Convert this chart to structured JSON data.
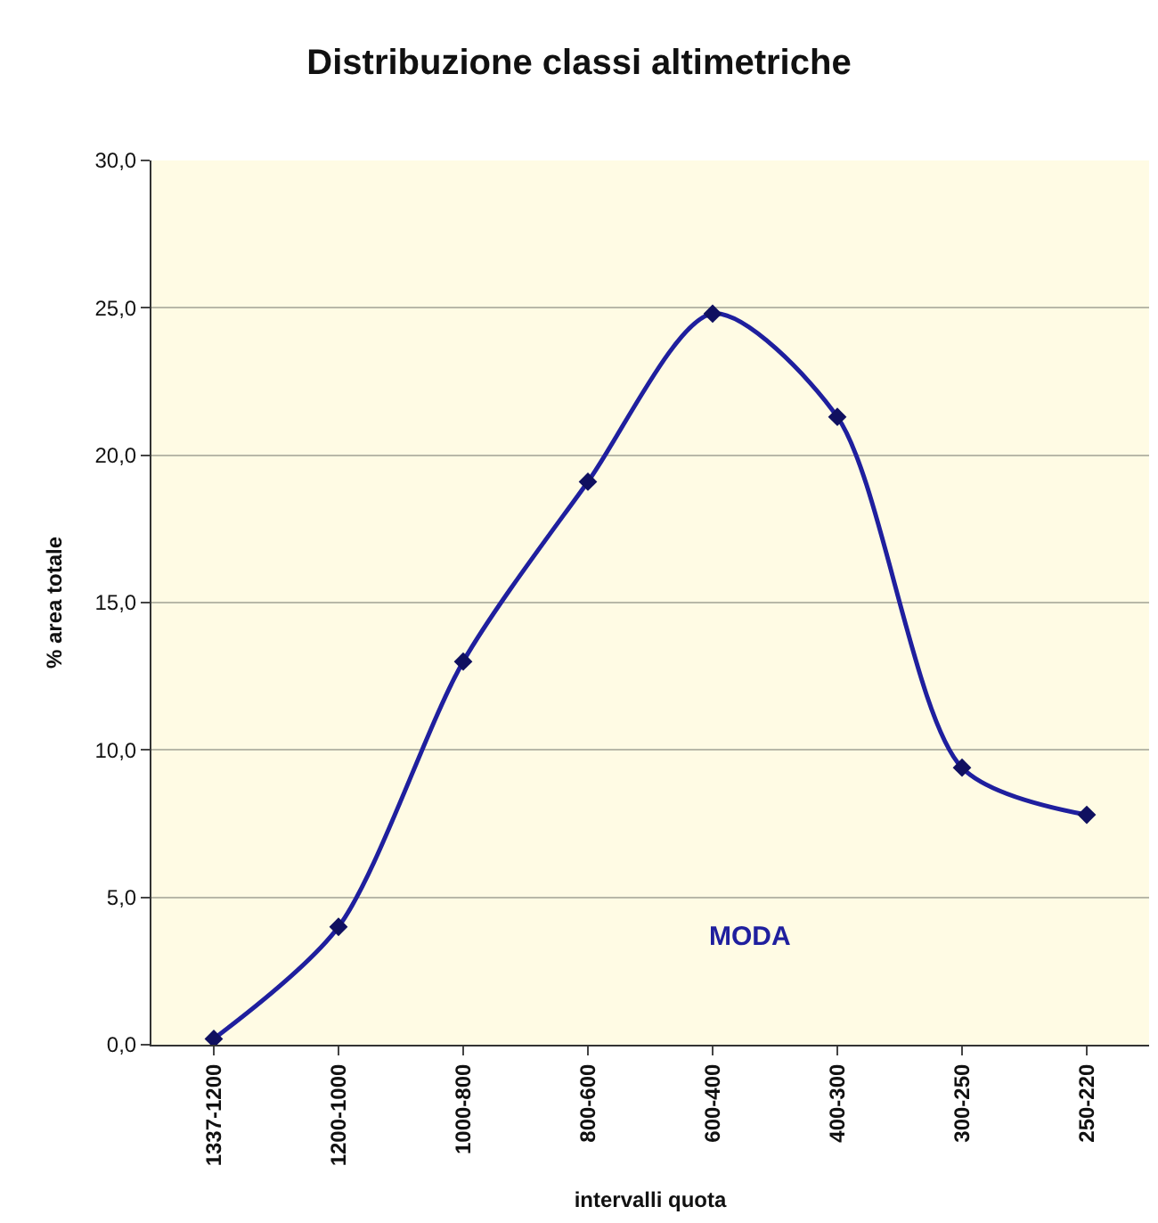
{
  "chart_data": {
    "type": "line",
    "title": "Distribuzione classi altimetriche",
    "xlabel": "intervalli quota",
    "ylabel": "% area totale",
    "categories": [
      "1337-1200",
      "1200-1000",
      "1000-800",
      "800-600",
      "600-400",
      "400-300",
      "300-250",
      "250-220"
    ],
    "series": [
      {
        "color": "#1f1f9e",
        "values": [
          0.2,
          4.0,
          13.0,
          19.1,
          24.8,
          21.3,
          9.4,
          7.8
        ]
      }
    ],
    "ylim": [
      0,
      30
    ],
    "yticks": [
      {
        "value": 0,
        "label": "0,0"
      },
      {
        "value": 5,
        "label": "5,0"
      },
      {
        "value": 10,
        "label": "10,0"
      },
      {
        "value": 15,
        "label": "15,0"
      },
      {
        "value": 20,
        "label": "20,0"
      },
      {
        "value": 25,
        "label": "25,0"
      },
      {
        "value": 30,
        "label": "30,0"
      }
    ],
    "grid": "y",
    "marker": "diamond",
    "line_style": "solid",
    "annotations": [
      "MODA"
    ]
  }
}
